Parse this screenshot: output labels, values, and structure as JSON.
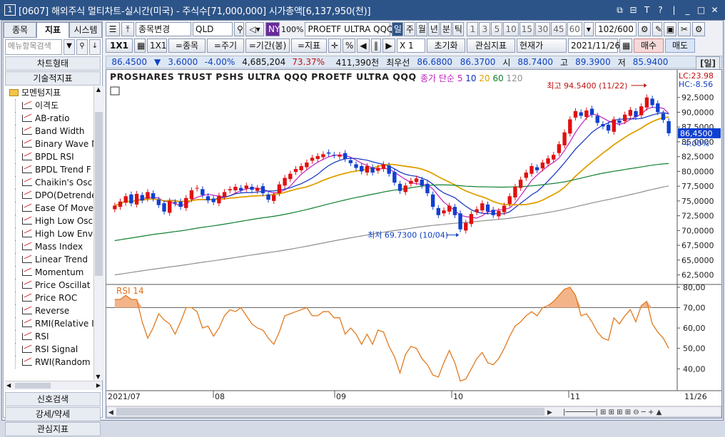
{
  "window": {
    "num": "1",
    "title": "[0607] 해외주식 멀티차트-실시간(미국) - 주식수[71,000,000]  시가총액[6,137,950(천)]",
    "controls": [
      "⧉",
      "⊟",
      "T",
      "?",
      "|",
      "_",
      "□",
      "✕"
    ]
  },
  "left_panel": {
    "tabs": [
      "종목",
      "지표",
      "시스템"
    ],
    "search_placeholder": "메뉴항목검색",
    "buttons_top": [
      "차트형태",
      "기술적지표"
    ],
    "folder": "모멘텀지표",
    "items": [
      "이격도",
      "AB-ratio",
      "Band Width",
      "Binary Wave M",
      "BPDL RSI",
      "BPDL Trend F",
      "Chaikin's Osc",
      "DPO(Detrende",
      "Ease Of Move",
      "High Low Osc",
      "High Low Env",
      "Mass Index",
      "Linear Trend",
      "Momentum",
      "Price Oscillat",
      "Price ROC",
      "Reverse",
      "RMI(Relative I",
      "RSI",
      "RSI Signal",
      "RWI(Random"
    ],
    "buttons_bottom": [
      "신호검색",
      "강세/약세",
      "관심지표"
    ]
  },
  "toolbar1": {
    "code_btn": "종목변경",
    "symbol": "QLD",
    "market": "NY",
    "pct": "100%",
    "name": "PROETF ULTRA QQQ",
    "periods": [
      "일",
      "주",
      "월",
      "년",
      "분",
      "틱"
    ],
    "intervals": [
      "1",
      "3",
      "5",
      "10",
      "15",
      "30",
      "45",
      "60"
    ],
    "interval_sel": "60",
    "count": "102/600"
  },
  "toolbar2": {
    "view": "1X1",
    "view2": "1X1",
    "b_item": "=종목",
    "b_period": "=주기",
    "b_range": "=기간(봉)",
    "b_ind": "=지표",
    "mult": "X 1",
    "reset": "초기화",
    "fav": "관심지표",
    "price": "현재가",
    "date": "2021/11/26",
    "buy": "매수",
    "sell": "매도"
  },
  "quote": {
    "last": "86.4500",
    "arrow": "▼",
    "chg": "3.6000",
    "pct": "-4.00%",
    "vol": "4,685,204",
    "ratio": "73.37%",
    "amt": "411,390천",
    "bid_label": "최우선",
    "bid": "86.6800",
    "ask": "86.3700",
    "open_l": "시",
    "open": "88.7400",
    "high_l": "고",
    "high": "89.3900",
    "low_l": "저",
    "low": "85.9400",
    "tag": "[일]"
  },
  "chart": {
    "title": "PROSHARES TRUST PSHS ULTRA QQQ  PROETF ULTRA QQQ",
    "legend_label": "종가 단순",
    "ma_labels": [
      "5",
      "10",
      "20",
      "60",
      "120"
    ],
    "ma_colors": [
      "#c020c0",
      "#1030c0",
      "#e0a000",
      "#108030",
      "#909090"
    ],
    "lc": "LC:23.98",
    "hc": "HC:-8.56",
    "price_ticks": [
      "92,5000",
      "90,0000",
      "87,5000",
      "85,0000",
      "82,5000",
      "80,0000",
      "77,5000",
      "75,0000",
      "72,5000",
      "70,0000",
      "67,5000",
      "65,0000",
      "62,5000"
    ],
    "last_tag": "86,4500",
    "last_pct": "-4.00%",
    "max_label": "최고 94.5400 (11/22)",
    "min_label": "최저 69.7300 (10/04)",
    "rsi_label": "RSI 14",
    "rsi_ticks": [
      "80,00",
      "70,00",
      "60,00",
      "50,00",
      "40,00"
    ],
    "x_labels": [
      "2021/07",
      "08",
      "09",
      "10",
      "11",
      "11/26"
    ]
  },
  "chart_data": {
    "type": "candlestick",
    "title": "PROSHARES TRUST PSHS ULTRA QQQ  PROETF ULTRA QQQ",
    "ylim": [
      61,
      95
    ],
    "high": 94.54,
    "high_date": "11/22",
    "low": 69.73,
    "low_date": "10/04",
    "last": 86.45,
    "closes": [
      74.2,
      74.9,
      75.8,
      74.6,
      76.2,
      75.1,
      76.5,
      75.4,
      74.3,
      73.2,
      75.0,
      74.6,
      74.0,
      75.5,
      76.8,
      77.2,
      76.0,
      75.1,
      74.8,
      75.9,
      76.5,
      77.0,
      77.4,
      76.8,
      77.6,
      76.9,
      77.2,
      76.3,
      75.2,
      76.0,
      77.8,
      78.9,
      79.6,
      80.4,
      80.9,
      81.5,
      82.3,
      82.6,
      82.9,
      83.0,
      82.7,
      82.8,
      82.1,
      81.4,
      80.6,
      80.0,
      80.9,
      79.8,
      80.6,
      81.2,
      79.6,
      78.1,
      76.7,
      77.6,
      78.4,
      78.8,
      77.6,
      76.3,
      74.0,
      72.6,
      73.4,
      74.2,
      72.6,
      70.2,
      71.3,
      72.8,
      73.6,
      74.6,
      73.2,
      72.6,
      73.3,
      74.2,
      75.8,
      77.4,
      78.6,
      79.8,
      80.9,
      80.2,
      81.5,
      82.2,
      82.8,
      84.6,
      86.6,
      88.8,
      90.2,
      89.4,
      90.3,
      89.6,
      88.2,
      87.6,
      86.9,
      88.8,
      88.2,
      89.6,
      90.4,
      89.2,
      91.0,
      92.5,
      91.2,
      90.0,
      88.7,
      86.45
    ],
    "rsi": [
      74,
      74,
      76,
      74,
      74,
      63,
      55,
      60,
      67,
      64,
      62,
      57,
      63,
      70,
      70,
      68,
      60,
      61,
      56,
      60,
      66,
      69,
      68,
      70,
      66,
      62,
      60,
      59,
      55,
      52,
      58,
      66,
      67,
      68,
      69,
      70,
      66,
      66,
      68,
      68,
      65,
      65,
      57,
      60,
      57,
      52,
      57,
      52,
      59,
      58,
      51,
      46,
      38,
      47,
      51,
      50,
      45,
      42,
      37,
      36,
      43,
      49,
      43,
      34,
      35,
      40,
      45,
      48,
      43,
      42,
      45,
      50,
      56,
      61,
      63,
      66,
      68,
      66,
      70,
      71,
      73,
      76,
      79,
      80,
      76,
      66,
      67,
      63,
      58,
      55,
      54,
      65,
      62,
      66,
      69,
      63,
      71,
      73,
      62,
      58,
      55,
      50
    ],
    "rsi_ylim": [
      30,
      81
    ],
    "x_ticks": [
      "2021/07",
      "08",
      "09",
      "10",
      "11",
      "11/26"
    ]
  }
}
